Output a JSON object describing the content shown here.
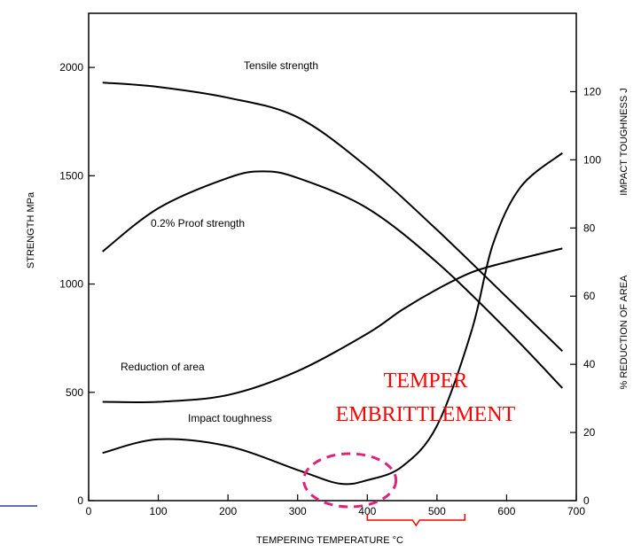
{
  "chart_data": {
    "type": "line",
    "xlabel": "TEMPERING TEMPERATURE °C",
    "ylabel_left": "STRENGTH MPa",
    "ylabel_right_top": "IMPACT TOUGHNESS J",
    "ylabel_right_bottom": "% REDUCTION OF AREA",
    "xlim": [
      0,
      700
    ],
    "ylim_left": [
      0,
      2250
    ],
    "ylim_right": [
      0,
      143
    ],
    "x_ticks": [
      0,
      100,
      200,
      300,
      400,
      500,
      600,
      700
    ],
    "y_left_ticks": [
      0,
      500,
      1000,
      1500,
      2000
    ],
    "y_right_ticks": [
      0,
      20,
      40,
      60,
      80,
      100,
      120
    ],
    "grid": false,
    "series": [
      {
        "name": "Tensile strength",
        "axis": "left",
        "x": [
          20,
          100,
          200,
          300,
          400,
          500,
          600,
          680
        ],
        "y": [
          1930,
          1910,
          1860,
          1770,
          1540,
          1250,
          940,
          690
        ]
      },
      {
        "name": "0.2% Proof strength",
        "axis": "left",
        "x": [
          20,
          100,
          200,
          250,
          300,
          400,
          500,
          600,
          680
        ],
        "y": [
          1150,
          1350,
          1490,
          1520,
          1490,
          1350,
          1100,
          790,
          520
        ]
      },
      {
        "name": "Reduction of area",
        "axis": "right",
        "x": [
          20,
          100,
          200,
          300,
          400,
          450,
          500,
          550,
          600,
          680
        ],
        "y": [
          29,
          29,
          31,
          38,
          49,
          56,
          62,
          67,
          70,
          74
        ]
      },
      {
        "name": "Impact toughness",
        "axis": "right",
        "x": [
          20,
          100,
          200,
          300,
          360,
          400,
          450,
          500,
          550,
          580,
          620,
          680
        ],
        "y": [
          14,
          18,
          16,
          9,
          5,
          6,
          10,
          22,
          50,
          75,
          92,
          102
        ]
      }
    ],
    "annotations": {
      "text_line1": "TEMPER",
      "text_line2": "EMBRITTLEMENT",
      "range_x": [
        400,
        540
      ],
      "ellipse_center_x": 375,
      "color": "#ff0000",
      "ellipse_color": "#e0237a"
    }
  }
}
